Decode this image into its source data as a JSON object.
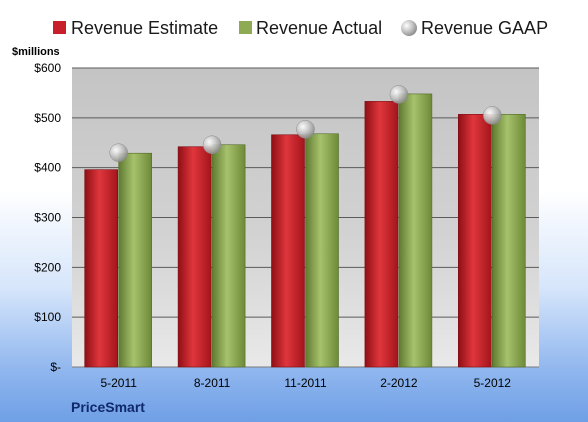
{
  "chart_data": {
    "type": "bar",
    "unit_label": "$millions",
    "company": "PriceSmart",
    "categories": [
      "5-2011",
      "8-2011",
      "11-2011",
      "2-2012",
      "5-2012"
    ],
    "y_ticks": [
      {
        "value": 0,
        "label": "$-"
      },
      {
        "value": 100,
        "label": "$100"
      },
      {
        "value": 200,
        "label": "$200"
      },
      {
        "value": 300,
        "label": "$300"
      },
      {
        "value": 400,
        "label": "$400"
      },
      {
        "value": 500,
        "label": "$500"
      },
      {
        "value": 600,
        "label": "$600"
      }
    ],
    "ylim": [
      0,
      600
    ],
    "grid": true,
    "legend_position": "top",
    "series": [
      {
        "name": "Revenue Estimate",
        "kind": "bar",
        "color": "#c8202a",
        "values": [
          396,
          442,
          466,
          533,
          507
        ]
      },
      {
        "name": "Revenue Actual",
        "kind": "bar",
        "color": "#8faa55",
        "values": [
          429,
          446,
          468,
          548,
          507
        ]
      },
      {
        "name": "Revenue GAAP",
        "kind": "marker",
        "color": "#b8b8b8",
        "values": [
          430,
          446,
          477,
          547,
          505
        ]
      }
    ]
  }
}
